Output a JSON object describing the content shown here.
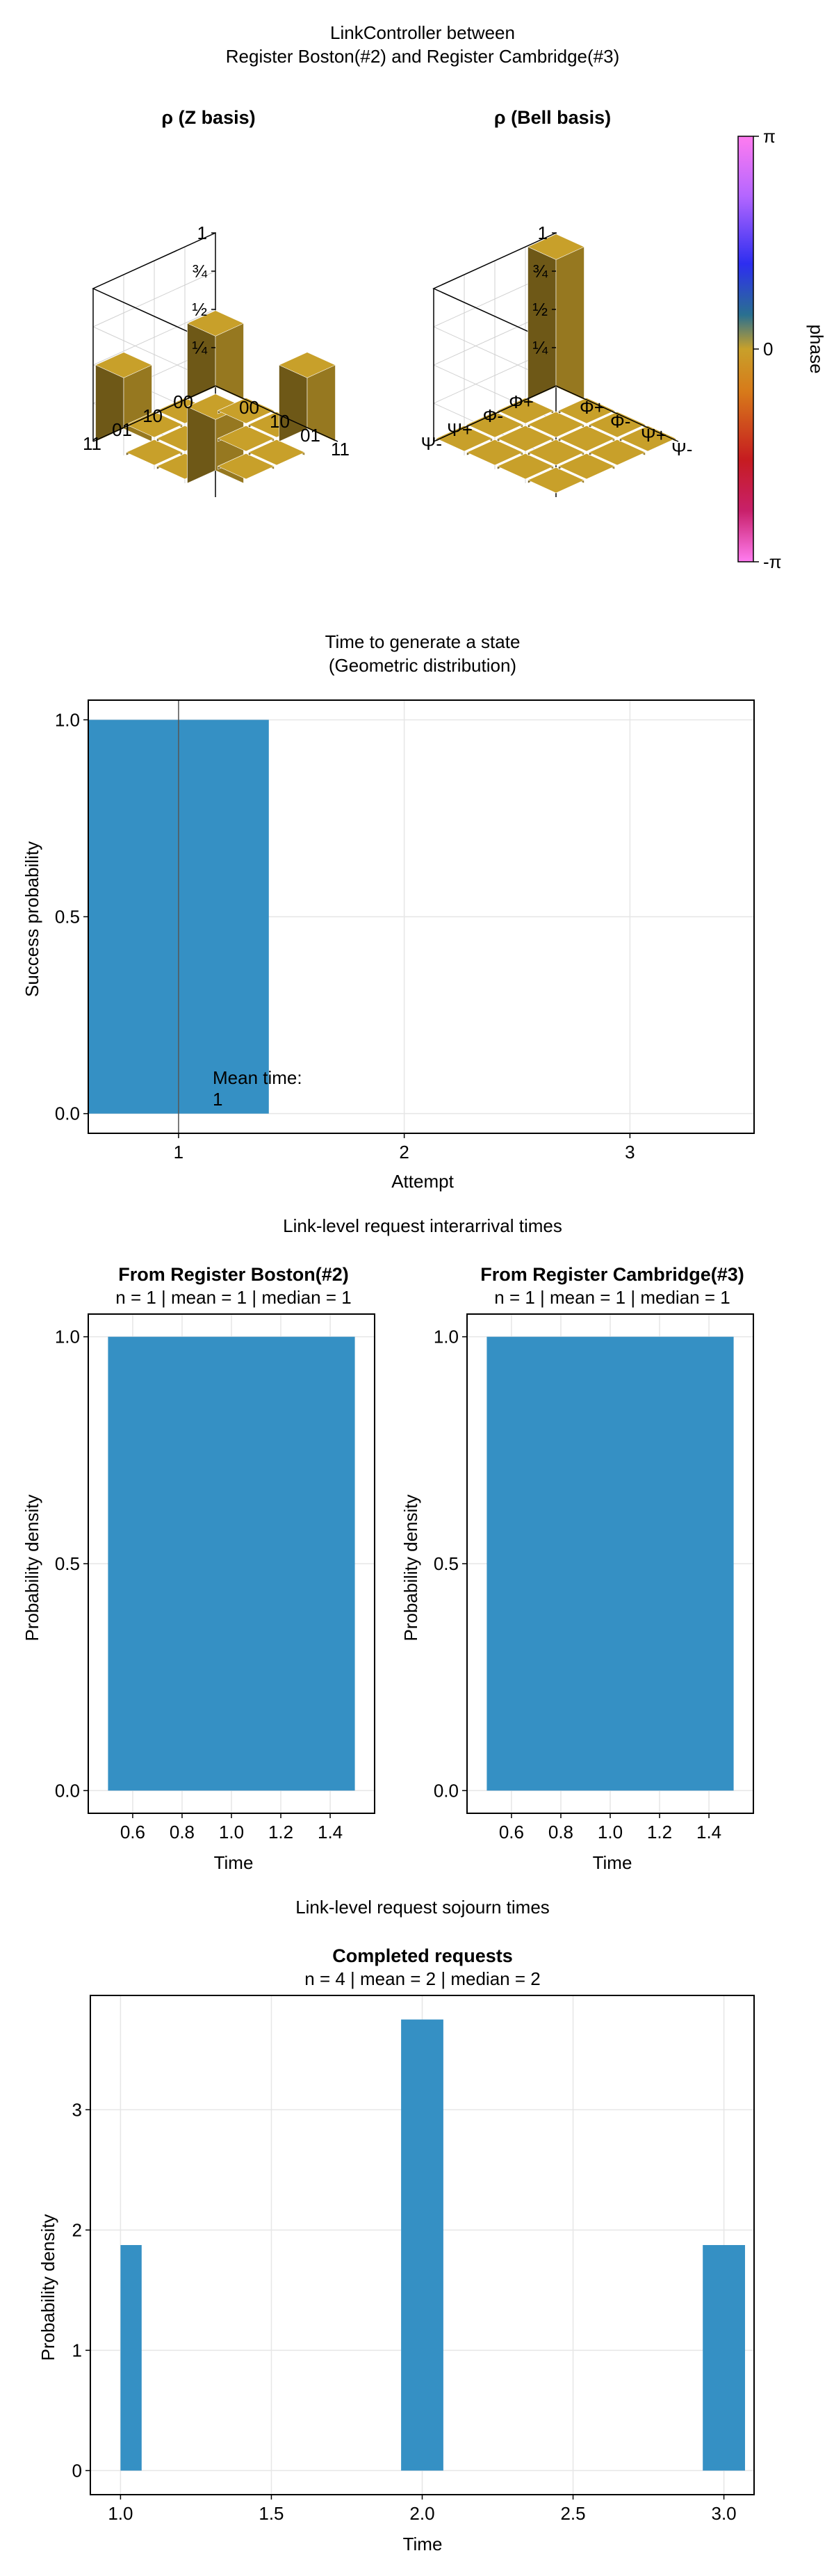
{
  "chart_data": [
    {
      "type": "heatmap",
      "panel": "density-matrix-plots",
      "suptitle_line1": "LinkController between",
      "suptitle_line2": "Register Boston(#2) and Register Cambridge(#3)",
      "z_basis": {
        "title": "ρ (Z basis)",
        "row_labels": [
          "00",
          "10",
          "01",
          "11"
        ],
        "col_labels": [
          "00",
          "10",
          "01",
          "11"
        ],
        "z_ticks": [
          "1",
          "¾",
          "½",
          "¼"
        ],
        "values": [
          [
            0.5,
            0.02,
            0.02,
            0.5
          ],
          [
            0.02,
            0.02,
            0.02,
            0.02
          ],
          [
            0.02,
            0.02,
            0.02,
            0.02
          ],
          [
            0.5,
            0.02,
            0.02,
            0.5
          ]
        ]
      },
      "bell_basis": {
        "title": "ρ (Bell basis)",
        "row_labels": [
          "Φ+",
          "Φ-",
          "Ψ+",
          "Ψ-"
        ],
        "col_labels": [
          "Φ+",
          "Φ-",
          "Ψ+",
          "Ψ-"
        ],
        "z_ticks": [
          "1",
          "¾",
          "½",
          "¼"
        ],
        "values": [
          [
            1,
            0.02,
            0.02,
            0.02
          ],
          [
            0.02,
            0.02,
            0.02,
            0.02
          ],
          [
            0.02,
            0.02,
            0.02,
            0.02
          ],
          [
            0.02,
            0.02,
            0.02,
            0.02
          ]
        ]
      },
      "colorbar": {
        "label": "phase",
        "ticks": [
          "π",
          "0",
          "-π"
        ]
      },
      "bar_color": "#c8a02a"
    },
    {
      "type": "bar",
      "panel": "time-to-generate",
      "title_line1": "Time to generate a state",
      "title_line2": "(Geometric distribution)",
      "xlabel": "Attempt",
      "ylabel": "Success probability",
      "xticks": [
        "1",
        "2",
        "3"
      ],
      "yticks": [
        "0.0",
        "0.5",
        "1.0"
      ],
      "x": [
        1
      ],
      "values": [
        1.0
      ],
      "xlim": [
        0.6,
        3.55
      ],
      "ylim": [
        -0.05,
        1.05
      ],
      "annotation_line1": "Mean time:",
      "annotation_line2": "1"
    },
    {
      "type": "bar",
      "panel": "interarrival",
      "suptitle": "Link-level request interarrival times",
      "subplots": [
        {
          "title": "From Register Boston(#2)",
          "subtitle": "n = 1 | mean = 1 | median = 1",
          "xlabel": "Time",
          "ylabel": "Probability density",
          "xticks": [
            "0.6",
            "0.8",
            "1.0",
            "1.2",
            "1.4"
          ],
          "yticks": [
            "0.0",
            "0.5",
            "1.0"
          ],
          "bin_edges": [
            0.5,
            1.5
          ],
          "values": [
            1.0
          ]
        },
        {
          "title": "From Register Cambridge(#3)",
          "subtitle": "n = 1 | mean = 1 | median = 1",
          "xlabel": "Time",
          "ylabel": "Probability density",
          "xticks": [
            "0.6",
            "0.8",
            "1.0",
            "1.2",
            "1.4"
          ],
          "yticks": [
            "0.0",
            "0.5",
            "1.0"
          ],
          "bin_edges": [
            0.5,
            1.5
          ],
          "values": [
            1.0
          ]
        }
      ]
    },
    {
      "type": "bar",
      "panel": "sojourn",
      "suptitle": "Link-level request sojourn times",
      "title": "Completed requests",
      "subtitle": "n = 4 | mean = 2 | median = 2",
      "xlabel": "Time",
      "ylabel": "Probability density",
      "xticks": [
        "1.0",
        "1.5",
        "2.0",
        "2.5",
        "3.0"
      ],
      "yticks": [
        "0",
        "1",
        "2",
        "3"
      ],
      "bins": [
        {
          "x0": 1.0,
          "x1": 1.07,
          "value": 1.875
        },
        {
          "x0": 1.93,
          "x1": 2.07,
          "value": 3.75
        },
        {
          "x0": 2.93,
          "x1": 3.07,
          "value": 1.875
        }
      ]
    }
  ]
}
